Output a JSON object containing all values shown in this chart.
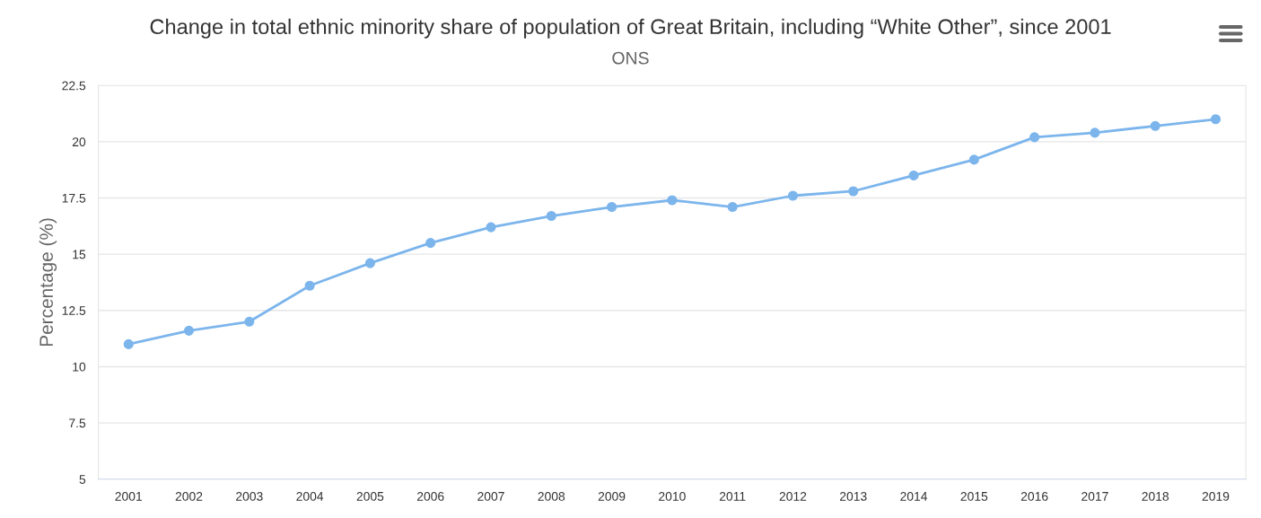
{
  "chart_data": {
    "type": "line",
    "title": "Change in total ethnic minority share of population of Great Britain, including “White Other”, since 2001",
    "subtitle": "ONS",
    "ylabel": "Percentage (%)",
    "categories": [
      "2001",
      "2002",
      "2003",
      "2004",
      "2005",
      "2006",
      "2007",
      "2008",
      "2009",
      "2010",
      "2011",
      "2012",
      "2013",
      "2014",
      "2015",
      "2016",
      "2017",
      "2018",
      "2019"
    ],
    "series": [
      {
        "color": "#7cb5ec",
        "values": [
          11.0,
          11.6,
          12.0,
          13.6,
          14.6,
          15.5,
          16.2,
          16.7,
          17.1,
          17.4,
          17.1,
          17.6,
          17.8,
          18.5,
          19.2,
          20.2,
          20.4,
          20.7,
          21.0
        ]
      }
    ],
    "ylim": [
      5,
      22.5
    ],
    "yticks": [
      5,
      7.5,
      10,
      12.5,
      15,
      17.5,
      20,
      22.5
    ],
    "grid": "y",
    "marker": "circle",
    "line_style": "solid",
    "legend": false
  }
}
